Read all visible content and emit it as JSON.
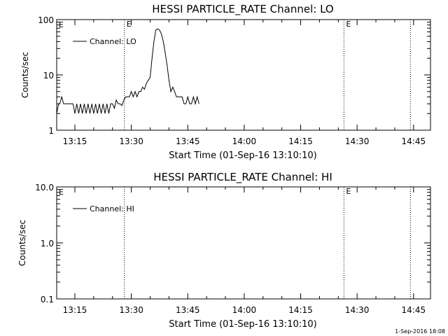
{
  "chart_data": [
    {
      "type": "line",
      "title": "HESSI PARTICLE_RATE Channel: LO",
      "xlabel": "Start Time (01-Sep-16 13:10:10)",
      "ylabel": "Counts/sec",
      "yscale": "log",
      "ylim": [
        1,
        100
      ],
      "yticks": [
        1,
        10,
        100
      ],
      "ytick_labels": [
        "1",
        "10",
        "100"
      ],
      "xlim": [
        "13:10:10",
        "14:49:30"
      ],
      "xticks": [
        "13:15",
        "13:30",
        "13:45",
        "14:00",
        "14:15",
        "14:30",
        "14:45"
      ],
      "legend": {
        "label": "Channel: LO",
        "position": "top-left"
      },
      "markers": [
        {
          "time": "13:28:10",
          "label": "E"
        },
        {
          "time": "14:26:30",
          "label": "E"
        },
        {
          "time": "14:44:10",
          "label": ""
        }
      ],
      "corner_label": "E",
      "series": [
        {
          "name": "Channel: LO",
          "x": [
            "13:10:10",
            "13:10:40",
            "13:11:00",
            "13:11:30",
            "13:12:00",
            "13:12:30",
            "13:13:00",
            "13:13:30",
            "13:14:00",
            "13:14:30",
            "13:15:00",
            "13:15:30",
            "13:16:00",
            "13:16:30",
            "13:17:00",
            "13:17:30",
            "13:18:00",
            "13:18:30",
            "13:19:00",
            "13:19:30",
            "13:20:00",
            "13:20:30",
            "13:21:00",
            "13:21:30",
            "13:22:00",
            "13:22:30",
            "13:23:00",
            "13:23:30",
            "13:24:00",
            "13:24:30",
            "13:25:00",
            "13:25:30",
            "13:26:00",
            "13:26:30",
            "13:27:00",
            "13:27:30",
            "13:28:00",
            "13:28:30",
            "13:29:00",
            "13:29:30",
            "13:30:00",
            "13:30:30",
            "13:31:00",
            "13:31:30",
            "13:32:00",
            "13:32:30",
            "13:33:00",
            "13:33:30",
            "13:34:00",
            "13:34:30",
            "13:35:00",
            "13:35:30",
            "13:36:00",
            "13:36:30",
            "13:37:00",
            "13:37:30",
            "13:38:00",
            "13:38:30",
            "13:39:00",
            "13:39:30",
            "13:40:00",
            "13:40:30",
            "13:41:00",
            "13:41:30",
            "13:42:00",
            "13:42:30",
            "13:43:00",
            "13:43:30",
            "13:44:00",
            "13:44:30",
            "13:45:00",
            "13:45:30",
            "13:46:00",
            "13:46:30",
            "13:47:00",
            "13:47:30",
            "13:48:00"
          ],
          "y": [
            2.0,
            3.0,
            3.0,
            4.0,
            3.0,
            3.0,
            3.0,
            3.0,
            3.0,
            3.0,
            2.0,
            3.0,
            2.0,
            3.0,
            2.0,
            3.0,
            2.0,
            3.0,
            2.0,
            3.0,
            2.0,
            3.0,
            2.0,
            3.0,
            2.0,
            3.0,
            2.0,
            3.0,
            2.0,
            3.0,
            3.0,
            2.5,
            3.5,
            3.0,
            3.0,
            2.8,
            3.5,
            4.0,
            4.0,
            4.0,
            5.0,
            4.0,
            5.0,
            4.0,
            5.0,
            5.0,
            6.0,
            5.5,
            7.0,
            8.0,
            9.0,
            20.0,
            40.0,
            65.0,
            68.0,
            65.0,
            55.0,
            40.0,
            25.0,
            15.0,
            8.0,
            5.0,
            6.0,
            5.0,
            4.0,
            4.0,
            4.0,
            4.0,
            3.0,
            3.0,
            4.0,
            3.0,
            3.0,
            4.0,
            3.0,
            4.0,
            3.0
          ]
        }
      ]
    },
    {
      "type": "line",
      "title": "HESSI PARTICLE_RATE Channel: HI",
      "xlabel": "Start Time (01-Sep-16 13:10:10)",
      "ylabel": "Counts/sec",
      "yscale": "log",
      "ylim": [
        0.1,
        10
      ],
      "yticks": [
        0.1,
        1,
        10
      ],
      "ytick_labels": [
        "0.1",
        "1.0",
        "10.0"
      ],
      "xlim": [
        "13:10:10",
        "14:49:30"
      ],
      "xticks": [
        "13:15",
        "13:30",
        "13:45",
        "14:00",
        "14:15",
        "14:30",
        "14:45"
      ],
      "legend": {
        "label": "Channel: HI",
        "position": "top-left"
      },
      "markers": [
        {
          "time": "13:28:10",
          "label": ""
        },
        {
          "time": "14:26:30",
          "label": "E"
        },
        {
          "time": "14:44:10",
          "label": ""
        }
      ],
      "corner_label": "E",
      "series": [
        {
          "name": "Channel: HI",
          "x": [],
          "y": []
        }
      ]
    }
  ],
  "footer": {
    "timestamp": "1-Sep-2016 18:08"
  }
}
